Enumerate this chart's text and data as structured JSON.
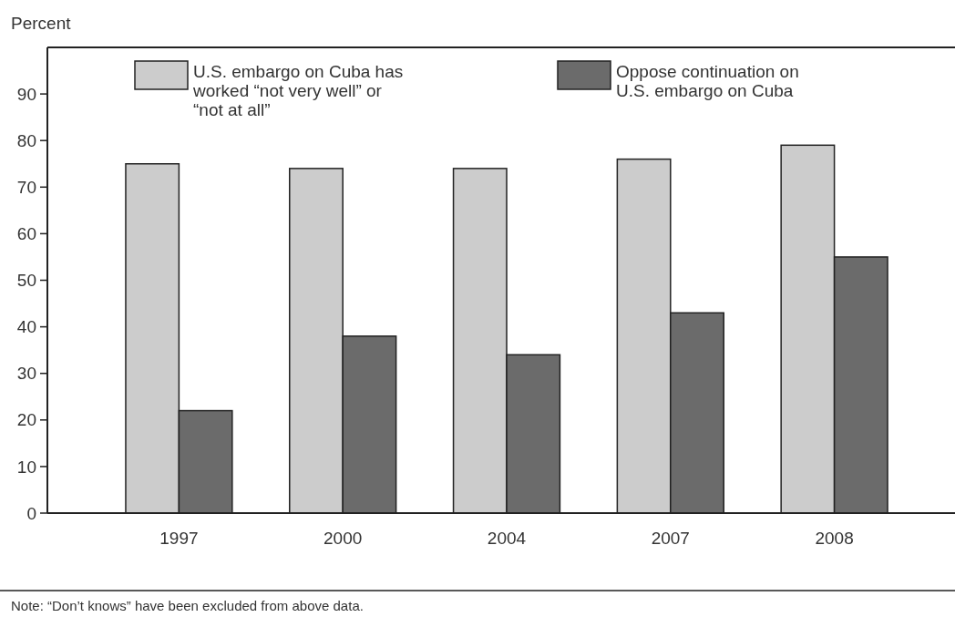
{
  "chart_data": {
    "type": "bar",
    "ylabel": "Percent",
    "categories": [
      "1997",
      "2000",
      "2004",
      "2007",
      "2008"
    ],
    "series": [
      {
        "name": "U.S. embargo on Cuba has worked “not very well” or “not at all”",
        "color": "#cccccc",
        "values": [
          75,
          74,
          74,
          76,
          79
        ]
      },
      {
        "name": "Oppose continuation on U.S. embargo on Cuba",
        "color": "#6b6b6b",
        "values": [
          22,
          38,
          34,
          43,
          55
        ]
      }
    ],
    "ylim": [
      0,
      100
    ],
    "yticks": [
      0,
      10,
      20,
      30,
      40,
      50,
      60,
      70,
      80,
      90
    ],
    "grid": false,
    "legend": "top",
    "annotations": [
      "Note: “Don’t knows” have been excluded from above data."
    ]
  }
}
